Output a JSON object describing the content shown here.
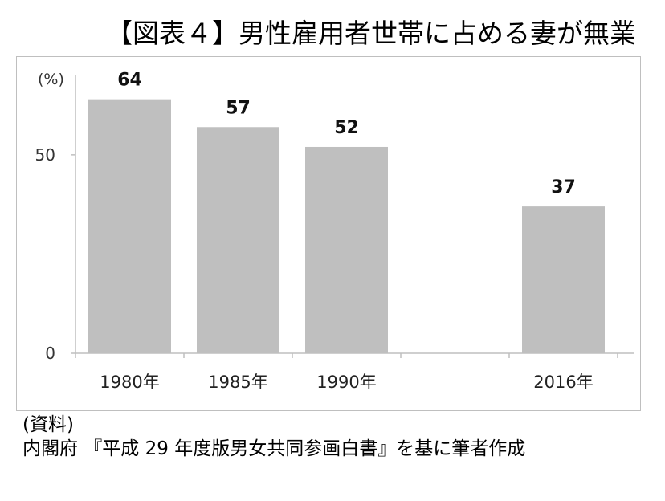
{
  "title": "【図表４】男性雇用者世帯に占める妻が無業",
  "chart_data": {
    "type": "bar",
    "ylabel": "(%)",
    "ylim": [
      0,
      70
    ],
    "yticks": [
      0,
      50
    ],
    "categories": [
      "1980年",
      "1985年",
      "1990年",
      "",
      "2016年"
    ],
    "values": [
      64,
      57,
      52,
      null,
      37
    ],
    "data_labels": [
      "64",
      "57",
      "52",
      "",
      "37"
    ],
    "bar_color": "#bfbfbf",
    "grid": false
  },
  "source": {
    "label": "(資料)",
    "text": "内閣府 『平成 29 年度版男女共同参画白書』を基に筆者作成"
  }
}
